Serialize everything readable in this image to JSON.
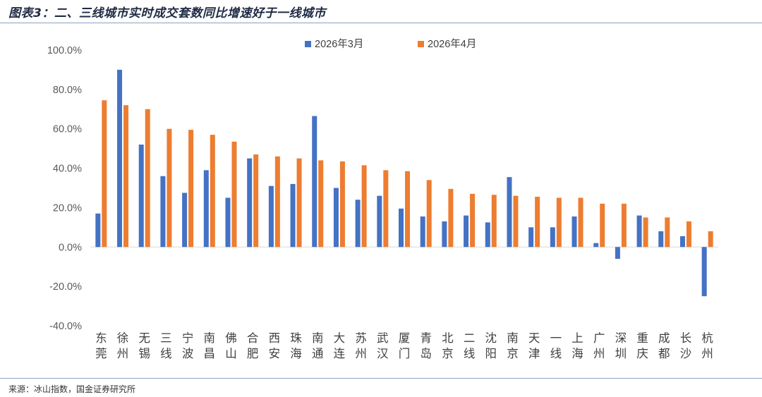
{
  "title": "图表3：二、三线城市实时成交套数同比增速好于一线城市",
  "source": "来源：冰山指数，国金证券研究所",
  "colors": {
    "series1": "#4472C4",
    "series2": "#ED7D31",
    "axis": "#d9d9d9",
    "rule": "#8aa0c4"
  },
  "chart_data": {
    "type": "bar",
    "title": "",
    "xlabel": "",
    "ylabel": "",
    "ylim": [
      -0.4,
      1.0
    ],
    "yticks": [
      1.0,
      0.8,
      0.6,
      0.4,
      0.2,
      0.0,
      -0.2,
      -0.4
    ],
    "ytick_labels": [
      "100.0%",
      "80.0%",
      "60.0%",
      "40.0%",
      "20.0%",
      "0.0%",
      "-20.0%",
      "-40.0%"
    ],
    "legend_position": "top-center",
    "grid": false,
    "categories": [
      "东莞",
      "徐州",
      "无锡",
      "三线",
      "宁波",
      "南昌",
      "佛山",
      "合肥",
      "西安",
      "珠海",
      "南通",
      "大连",
      "苏州",
      "武汉",
      "厦门",
      "青岛",
      "北京",
      "二线",
      "沈阳",
      "南京",
      "天津",
      "一线",
      "上海",
      "广州",
      "深圳",
      "重庆",
      "成都",
      "长沙",
      "杭州"
    ],
    "series": [
      {
        "name": "2026年3月",
        "values": [
          0.17,
          0.9,
          0.52,
          0.36,
          0.275,
          0.39,
          0.25,
          0.45,
          0.31,
          0.32,
          0.665,
          0.3,
          0.24,
          0.26,
          0.195,
          0.155,
          0.13,
          0.16,
          0.125,
          0.355,
          0.1,
          0.1,
          0.155,
          0.02,
          -0.06,
          0.16,
          0.08,
          0.055,
          -0.25
        ]
      },
      {
        "name": "2026年4月",
        "values": [
          0.745,
          0.72,
          0.7,
          0.6,
          0.595,
          0.57,
          0.535,
          0.47,
          0.46,
          0.45,
          0.44,
          0.435,
          0.415,
          0.39,
          0.385,
          0.34,
          0.295,
          0.27,
          0.265,
          0.26,
          0.255,
          0.25,
          0.25,
          0.22,
          0.22,
          0.15,
          0.15,
          0.13,
          0.08
        ]
      }
    ]
  }
}
